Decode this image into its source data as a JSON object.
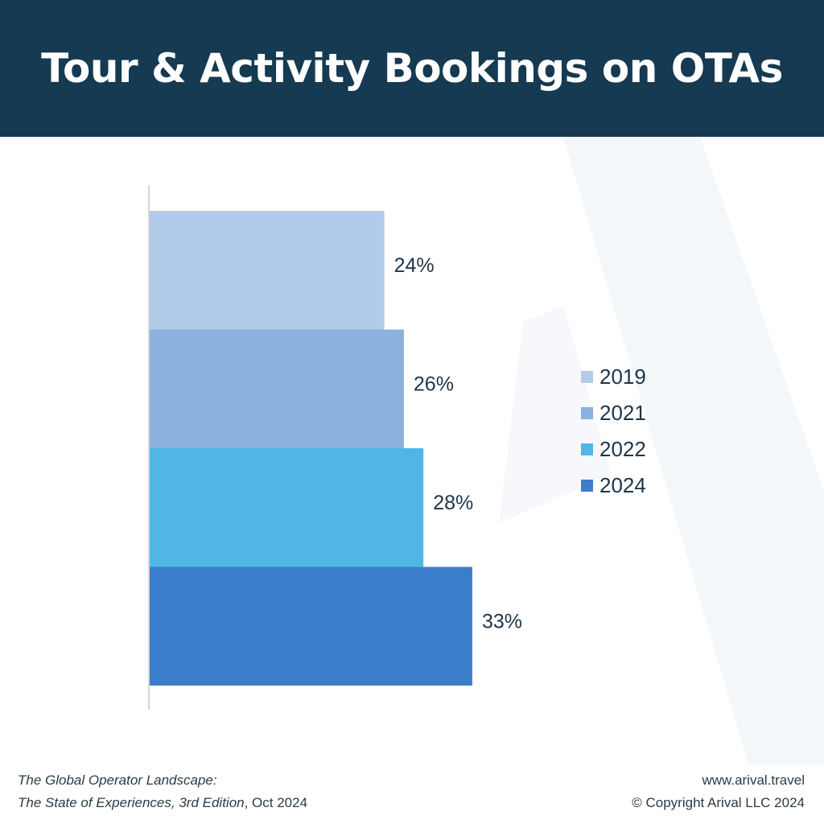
{
  "header": {
    "title": "Tour & Activity Bookings on OTAs"
  },
  "chart_data": {
    "type": "bar",
    "orientation": "horizontal",
    "categories": [
      "2019",
      "2021",
      "2022",
      "2024"
    ],
    "values": [
      24,
      26,
      28,
      33
    ],
    "value_labels": [
      "24%",
      "26%",
      "28%",
      "33%"
    ],
    "unit": "%",
    "xlim": [
      0,
      40
    ],
    "colors": [
      "#b3cbea",
      "#8cb0df",
      "#51b6e6",
      "#3b7fcc"
    ],
    "grid": false,
    "legend_position": "right",
    "title": "",
    "xlabel": "",
    "ylabel": ""
  },
  "legend": {
    "items": [
      {
        "label": "2019",
        "color": "#b3cbea"
      },
      {
        "label": "2021",
        "color": "#8cb0df"
      },
      {
        "label": "2022",
        "color": "#51b6e6"
      },
      {
        "label": "2024",
        "color": "#3b7fcc"
      }
    ]
  },
  "footer": {
    "source_line1": "The Global Operator Landscape:",
    "source_line2_italic": "The State of Experiences, 3rd Edition",
    "source_line2_plain": ", Oct 2024",
    "website": "www.arival.travel",
    "copyright": "© Copyright Arival LLC 2024"
  },
  "colors": {
    "header_bg": "#153a52",
    "text_dark": "#1e3548"
  }
}
